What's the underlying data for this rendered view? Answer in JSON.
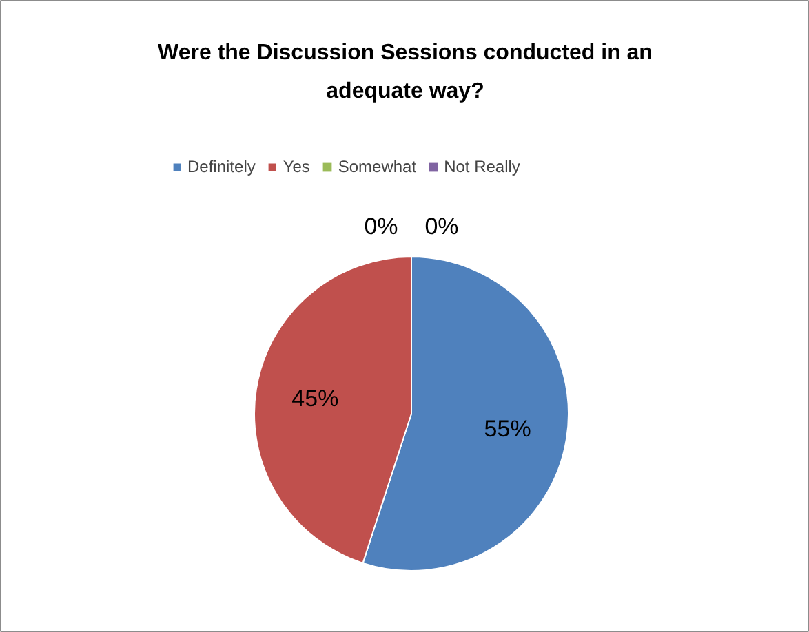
{
  "chart_data": {
    "type": "pie",
    "title": "Were the Discussion Sessions conducted in an adequate way?",
    "categories": [
      "Definitely",
      "Yes",
      "Somewhat",
      "Not Really"
    ],
    "values": [
      55,
      45,
      0,
      0
    ],
    "colors": [
      "#4f81bd",
      "#c0504d",
      "#9bbb59",
      "#8064a2"
    ],
    "value_labels": [
      "55%",
      "45%",
      "0%",
      "0%"
    ],
    "legend": "top"
  }
}
